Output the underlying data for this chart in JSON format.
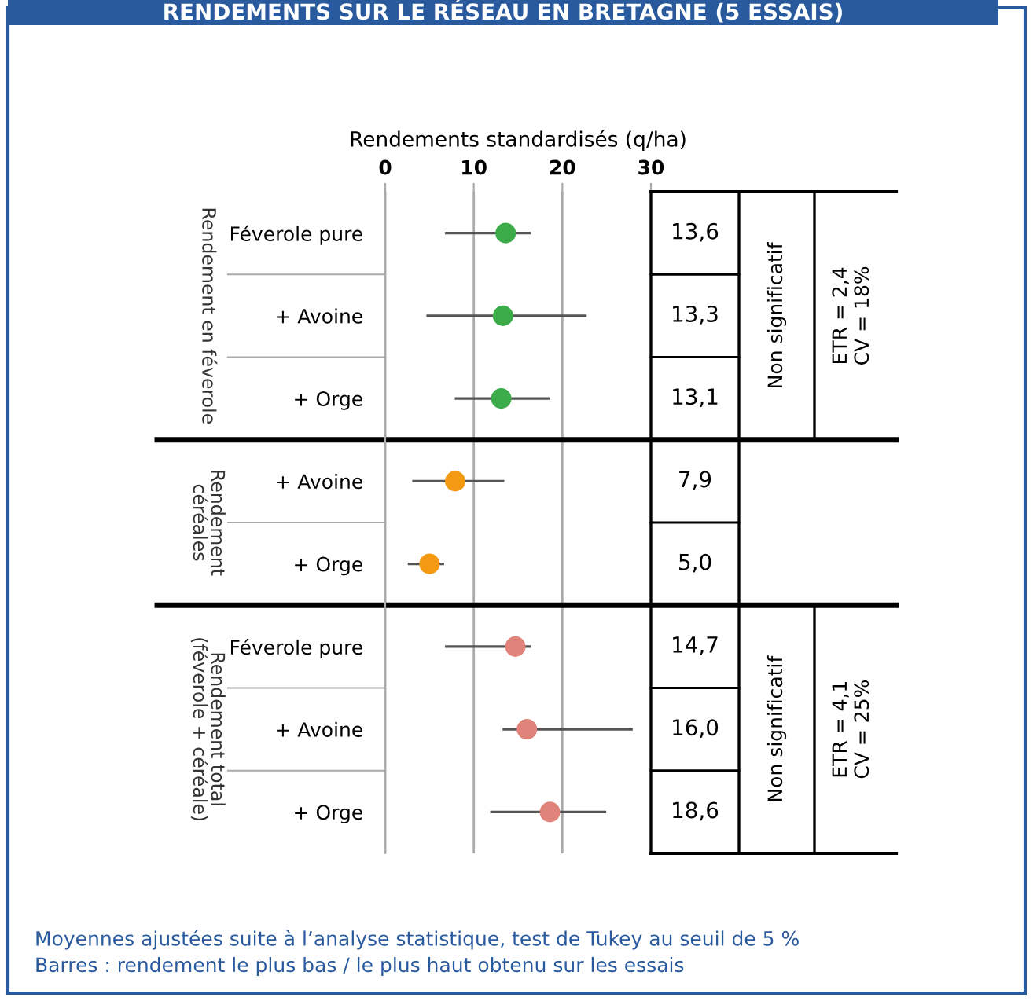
{
  "chart_data": {
    "type": "scatter",
    "orientation": "horizontal",
    "title": "RENDEMENTS SUR LE RÉSEAU EN BRETAGNE (5 ESSAIS)",
    "xlabel": "Rendements standardisés (q/ha)",
    "categories": [
      "Féverole pure",
      "+ Avoine",
      "+ Orge",
      "+ Avoine",
      "+ Orge",
      "Féverole pure",
      "+ Avoine",
      "+ Orge"
    ],
    "values": [
      13.6,
      13.3,
      13.1,
      7.9,
      5.0,
      14.7,
      16.0,
      18.6
    ],
    "value_labels": [
      "13,6",
      "13,3",
      "13,1",
      "7,9",
      "5,0",
      "14,7",
      "16,0",
      "18,6"
    ],
    "errors": [
      [
        6.9,
        16.3
      ],
      [
        4.8,
        22.6
      ],
      [
        8.0,
        18.4
      ],
      [
        3.2,
        13.3
      ],
      [
        2.7,
        6.5
      ],
      [
        6.9,
        16.3
      ],
      [
        13.4,
        27.8
      ],
      [
        12.0,
        24.8
      ]
    ],
    "colors": [
      "#3cab4a",
      "#3cab4a",
      "#3cab4a",
      "#f39a12",
      "#f39a12",
      "#e0837a",
      "#e0837a",
      "#e0837a"
    ],
    "marker": "circle",
    "xlim": [
      0,
      30
    ],
    "xticks": [
      0,
      10,
      20,
      30
    ],
    "grid": "x",
    "annotations": [
      "Rendement en féverole",
      "Rendement\ncéréales",
      "Rendement total\n(féverole + céréale)",
      "Non significatif",
      "ETR = 2,4\nCV = 18%",
      "Non significatif",
      "ETR = 4,1\nCV = 25%",
      "Moyennes ajustées suite à l’analyse statistique, test de Tukey au seuil de 5 %",
      "Barres : rendement le plus bas / le plus haut obtenu sur les essais"
    ]
  }
}
